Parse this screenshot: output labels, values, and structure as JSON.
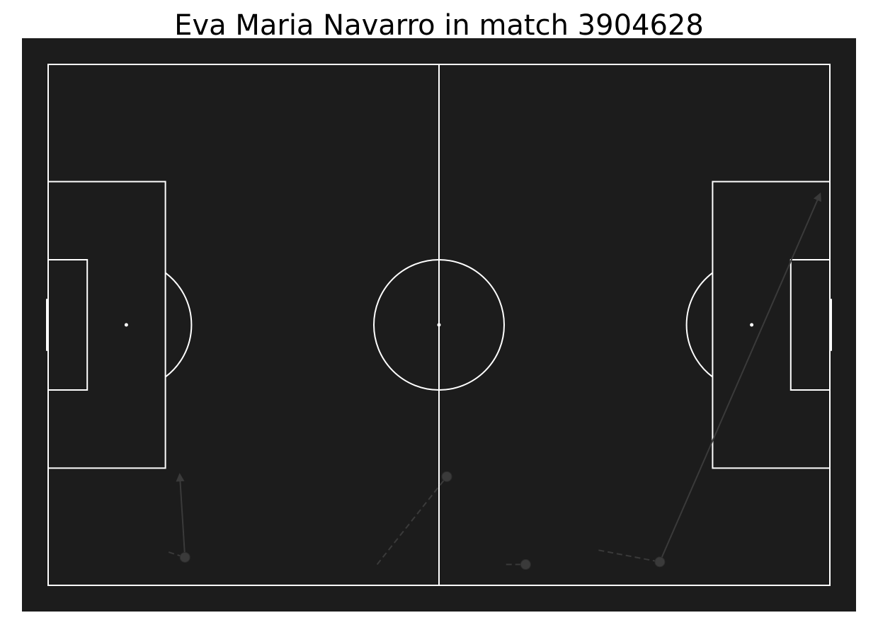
{
  "chart_data": {
    "type": "scatter",
    "title": "Eva Maria Navarro in match 3904628",
    "xlim": [
      0,
      120
    ],
    "ylim": [
      0,
      80
    ],
    "pitch": {
      "background": "#1c1c1c",
      "line_color": "#ffffff"
    },
    "event_color": "#3a3a3a",
    "events": [
      {
        "x": 21,
        "y": 75.7,
        "carry_from": [
          18.5,
          74.9
        ],
        "pass_to": [
          20.2,
          63
        ]
      },
      {
        "x": 61.2,
        "y": 63.3,
        "carry_from": [
          50.5,
          76.8
        ]
      },
      {
        "x": 73.3,
        "y": 76.8,
        "carry_from": [
          70.3,
          76.8
        ]
      },
      {
        "x": 93.9,
        "y": 76.4,
        "carry_from": [
          84.5,
          74.6
        ],
        "pass_to": [
          118.5,
          19.9
        ]
      }
    ]
  }
}
